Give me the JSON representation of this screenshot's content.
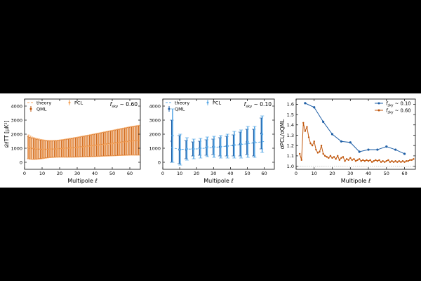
{
  "chart_data": [
    {
      "type": "errorbar",
      "ylabel": "𝒟ℓTT [μK²]",
      "xlabel": "Multipole ℓ",
      "annotation": "f_sky ~ 0.60",
      "xlim": [
        0,
        66
      ],
      "ylim": [
        -500,
        4500
      ],
      "xticks": [
        0,
        10,
        20,
        30,
        40,
        50,
        60
      ],
      "yticks": [
        0,
        1000,
        2000,
        3000,
        4000
      ],
      "legend": {
        "placement": "top-left",
        "entries": [
          "theory",
          "QML",
          "PCL"
        ]
      },
      "theory": {
        "x": [
          2,
          10,
          20,
          30,
          40,
          50,
          60,
          65
        ],
        "y": [
          1050,
          920,
          950,
          1050,
          1180,
          1320,
          1480,
          1560
        ]
      },
      "series": [
        {
          "name": "QML",
          "color": "#c0550a",
          "x": [
            2,
            3,
            4,
            5,
            6,
            7,
            8,
            9,
            10,
            11,
            12,
            13,
            14,
            15,
            16,
            17,
            18,
            19,
            20,
            21,
            22,
            23,
            24,
            25,
            26,
            27,
            28,
            29,
            30,
            31,
            32,
            33,
            34,
            35,
            36,
            37,
            38,
            39,
            40,
            41,
            42,
            43,
            44,
            45,
            46,
            47,
            48,
            49,
            50,
            51,
            52,
            53,
            54,
            55,
            56,
            57,
            58,
            59,
            60,
            61,
            62,
            63,
            64,
            65
          ],
          "y": [
            1050,
            1000,
            980,
            960,
            950,
            940,
            930,
            925,
            920,
            920,
            920,
            925,
            930,
            935,
            940,
            945,
            950,
            960,
            970,
            975,
            985,
            995,
            1005,
            1015,
            1025,
            1035,
            1050,
            1060,
            1070,
            1085,
            1100,
            1110,
            1125,
            1140,
            1150,
            1165,
            1180,
            1195,
            1210,
            1225,
            1240,
            1255,
            1270,
            1285,
            1300,
            1315,
            1330,
            1345,
            1360,
            1375,
            1390,
            1405,
            1420,
            1435,
            1450,
            1465,
            1480,
            1495,
            1510,
            1520,
            1530,
            1540,
            1550,
            1560
          ],
          "err": [
            800,
            780,
            760,
            740,
            720,
            700,
            680,
            660,
            640,
            620,
            600,
            590,
            580,
            575,
            570,
            570,
            570,
            575,
            580,
            590,
            600,
            610,
            620,
            630,
            640,
            650,
            660,
            670,
            680,
            690,
            700,
            710,
            720,
            730,
            740,
            750,
            760,
            770,
            780,
            790,
            800,
            810,
            820,
            830,
            840,
            850,
            860,
            870,
            880,
            890,
            900,
            910,
            920,
            930,
            940,
            950,
            960,
            970,
            980,
            990,
            1000,
            1010,
            1020,
            1030
          ]
        },
        {
          "name": "PCL",
          "color": "#f5a45c",
          "x": [
            2.3,
            3.3,
            4.3,
            5.3,
            6.3,
            7.3,
            8.3,
            9.3,
            10.3,
            11.3,
            12.3,
            13.3,
            14.3,
            15.3,
            16.3,
            17.3,
            18.3,
            19.3,
            20.3,
            21.3,
            22.3,
            23.3,
            24.3,
            25.3,
            26.3,
            27.3,
            28.3,
            29.3,
            30.3,
            31.3,
            32.3,
            33.3,
            34.3,
            35.3,
            36.3,
            37.3,
            38.3,
            39.3,
            40.3,
            41.3,
            42.3,
            43.3,
            44.3,
            45.3,
            46.3,
            47.3,
            48.3,
            49.3,
            50.3,
            51.3,
            52.3,
            53.3,
            54.3,
            55.3,
            56.3,
            57.3,
            58.3,
            59.3,
            60.3,
            61.3,
            62.3,
            63.3,
            64.3,
            65.3
          ],
          "y": [
            1100,
            1050,
            1000,
            980,
            960,
            950,
            940,
            935,
            930,
            930,
            930,
            935,
            940,
            945,
            950,
            955,
            960,
            970,
            980,
            985,
            995,
            1005,
            1015,
            1025,
            1035,
            1045,
            1060,
            1070,
            1080,
            1095,
            1110,
            1120,
            1135,
            1150,
            1160,
            1175,
            1190,
            1205,
            1220,
            1235,
            1250,
            1265,
            1280,
            1295,
            1310,
            1325,
            1340,
            1355,
            1370,
            1385,
            1400,
            1415,
            1430,
            1445,
            1460,
            1475,
            1490,
            1505,
            1520,
            1530,
            1540,
            1550,
            1560,
            1570
          ],
          "err": [
            850,
            820,
            800,
            780,
            760,
            740,
            720,
            700,
            680,
            660,
            640,
            630,
            620,
            615,
            610,
            610,
            610,
            615,
            620,
            630,
            640,
            650,
            660,
            670,
            680,
            690,
            700,
            710,
            720,
            730,
            740,
            750,
            760,
            770,
            780,
            790,
            800,
            810,
            820,
            830,
            840,
            850,
            860,
            870,
            880,
            890,
            900,
            910,
            920,
            930,
            940,
            950,
            960,
            970,
            980,
            990,
            1000,
            1010,
            1020,
            1030,
            1040,
            1050,
            1060,
            1070
          ]
        }
      ]
    },
    {
      "type": "errorbar",
      "xlabel": "Multipole ℓ",
      "annotation": "f_sky ~ 0.10",
      "xlim": [
        0,
        66
      ],
      "ylim": [
        -500,
        4500
      ],
      "xticks": [
        0,
        10,
        20,
        30,
        40,
        50,
        60
      ],
      "yticks": [
        0,
        1000,
        2000,
        3000,
        4000
      ],
      "legend": {
        "placement": "top-left",
        "entries": [
          "theory",
          "QML",
          "PCL"
        ]
      },
      "theory": {
        "x": [
          5,
          10,
          20,
          30,
          40,
          50,
          60
        ],
        "y": [
          1050,
          920,
          950,
          1050,
          1180,
          1320,
          1480
        ]
      },
      "series": [
        {
          "name": "QML",
          "color": "#1f5fa6",
          "x": [
            5.3,
            9.8,
            13.8,
            17.8,
            21.8,
            25.8,
            29.8,
            33.8,
            37.8,
            41.8,
            45.8,
            49.8,
            53.8,
            58.3
          ],
          "y": [
            1500,
            900,
            900,
            950,
            1000,
            1050,
            1100,
            1100,
            1150,
            1200,
            1300,
            1450,
            1400,
            2050
          ],
          "err": [
            1500,
            1000,
            650,
            500,
            500,
            550,
            550,
            650,
            700,
            750,
            850,
            900,
            950,
            1100
          ]
        },
        {
          "name": "PCL",
          "color": "#5aa9e6",
          "x": [
            5.8,
            10.3,
            14.3,
            18.3,
            22.3,
            26.3,
            30.3,
            34.3,
            38.3,
            42.3,
            46.3,
            50.3,
            54.3,
            58.8
          ],
          "y": [
            1900,
            900,
            950,
            950,
            1000,
            1100,
            1100,
            1100,
            1150,
            1250,
            1300,
            1450,
            1450,
            2000
          ],
          "err": [
            1900,
            1100,
            800,
            700,
            700,
            700,
            750,
            800,
            850,
            950,
            1000,
            1100,
            1100,
            1300
          ]
        }
      ]
    },
    {
      "type": "line",
      "ylabel": "σPCL/σQML",
      "xlabel": "Multipole ℓ",
      "xlim": [
        0,
        66
      ],
      "ylim": [
        0.97,
        1.65
      ],
      "xticks": [
        0,
        10,
        20,
        30,
        40,
        50,
        60
      ],
      "yticks": [
        1.0,
        1.1,
        1.2,
        1.3,
        1.4,
        1.5,
        1.6
      ],
      "reference_line": 1.0,
      "legend": {
        "placement": "top-right",
        "entries": [
          "f_sky ~ 0.10",
          "f_sky ~ 0.60"
        ]
      },
      "series": [
        {
          "name": "f_sky ~ 0.10",
          "color": "#1f5fa6",
          "x": [
            5,
            10,
            15,
            20,
            25,
            30,
            35,
            40,
            45,
            50,
            55,
            60
          ],
          "y": [
            1.61,
            1.57,
            1.43,
            1.31,
            1.24,
            1.23,
            1.14,
            1.16,
            1.16,
            1.19,
            1.16,
            1.12
          ]
        },
        {
          "name": "f_sky ~ 0.60",
          "color": "#c0550a",
          "x": [
            2,
            3,
            4,
            5,
            6,
            7,
            8,
            9,
            10,
            11,
            12,
            13,
            14,
            15,
            16,
            17,
            18,
            19,
            20,
            21,
            22,
            23,
            24,
            25,
            26,
            27,
            28,
            29,
            30,
            31,
            32,
            33,
            34,
            35,
            36,
            37,
            38,
            39,
            40,
            41,
            42,
            43,
            44,
            45,
            46,
            47,
            48,
            49,
            50,
            51,
            52,
            53,
            54,
            55,
            56,
            57,
            58,
            59,
            60,
            61,
            62,
            63,
            64,
            65
          ],
          "y": [
            1.12,
            1.06,
            1.42,
            1.34,
            1.38,
            1.28,
            1.22,
            1.2,
            1.24,
            1.16,
            1.13,
            1.14,
            1.2,
            1.12,
            1.1,
            1.09,
            1.08,
            1.1,
            1.08,
            1.09,
            1.07,
            1.1,
            1.06,
            1.08,
            1.09,
            1.05,
            1.07,
            1.06,
            1.08,
            1.06,
            1.07,
            1.05,
            1.06,
            1.07,
            1.05,
            1.06,
            1.05,
            1.06,
            1.05,
            1.06,
            1.04,
            1.05,
            1.06,
            1.05,
            1.06,
            1.04,
            1.05,
            1.04,
            1.05,
            1.06,
            1.04,
            1.05,
            1.04,
            1.05,
            1.04,
            1.05,
            1.04,
            1.05,
            1.04,
            1.05,
            1.05,
            1.06,
            1.06,
            1.07
          ]
        }
      ]
    }
  ]
}
